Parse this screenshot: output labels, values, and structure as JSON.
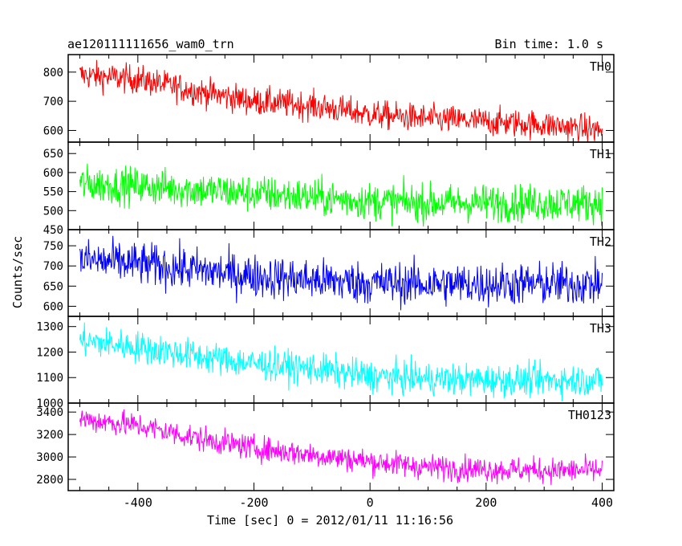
{
  "header": {
    "title": "ae120111111656_wam0_trn",
    "bin_time": "Bin time: 1.0 s"
  },
  "axes": {
    "xlabel": "Time [sec] 0 = 2012/01/11 11:16:56",
    "ylabel": "Counts/sec"
  },
  "chart_data": {
    "type": "line",
    "title": "ae120111111656_wam0_trn",
    "xlabel": "Time [sec] 0 = 2012/01/11 11:16:56",
    "ylabel": "Counts/sec",
    "xlim": [
      -520,
      420
    ],
    "x_ticks": [
      -400,
      -200,
      0,
      200,
      400
    ],
    "x_data_range": [
      -500,
      400
    ],
    "panels": [
      {
        "name": "TH0",
        "color": "#ff0000",
        "ylim": [
          560,
          860
        ],
        "y_ticks": [
          600,
          700,
          800
        ],
        "trend_x": [
          -500,
          -400,
          -300,
          -200,
          -100,
          0,
          100,
          200,
          300,
          400
        ],
        "trend_y": [
          790,
          775,
          735,
          700,
          685,
          655,
          640,
          630,
          620,
          600
        ],
        "noise": 35
      },
      {
        "name": "TH1",
        "color": "#00ff00",
        "ylim": [
          450,
          680
        ],
        "y_ticks": [
          450,
          500,
          550,
          600,
          650
        ],
        "trend_x": [
          -500,
          -400,
          -300,
          -200,
          -100,
          0,
          100,
          200,
          300,
          400
        ],
        "trend_y": [
          570,
          565,
          555,
          545,
          535,
          525,
          520,
          520,
          520,
          520
        ],
        "noise": 35
      },
      {
        "name": "TH2",
        "color": "#0000ff",
        "ylim": [
          575,
          790
        ],
        "y_ticks": [
          600,
          650,
          700,
          750
        ],
        "trend_x": [
          -500,
          -400,
          -300,
          -200,
          -100,
          0,
          100,
          200,
          300,
          400
        ],
        "trend_y": [
          715,
          705,
          690,
          675,
          665,
          658,
          655,
          655,
          655,
          655
        ],
        "noise": 38
      },
      {
        "name": "TH3",
        "color": "#00ffff",
        "ylim": [
          1000,
          1340
        ],
        "y_ticks": [
          1000,
          1100,
          1200,
          1300
        ],
        "trend_x": [
          -500,
          -400,
          -300,
          -200,
          -100,
          0,
          100,
          200,
          300,
          400
        ],
        "trend_y": [
          1245,
          1220,
          1185,
          1155,
          1135,
          1105,
          1095,
          1090,
          1090,
          1090
        ],
        "noise": 45
      },
      {
        "name": "TH0123",
        "color": "#ff00ff",
        "ylim": [
          2700,
          3480
        ],
        "y_ticks": [
          2800,
          3000,
          3200,
          3400
        ],
        "trend_x": [
          -500,
          -400,
          -300,
          -200,
          -100,
          0,
          100,
          200,
          300,
          400
        ],
        "trend_y": [
          3340,
          3280,
          3170,
          3080,
          3020,
          2960,
          2910,
          2890,
          2880,
          2880
        ],
        "noise": 80
      }
    ]
  }
}
